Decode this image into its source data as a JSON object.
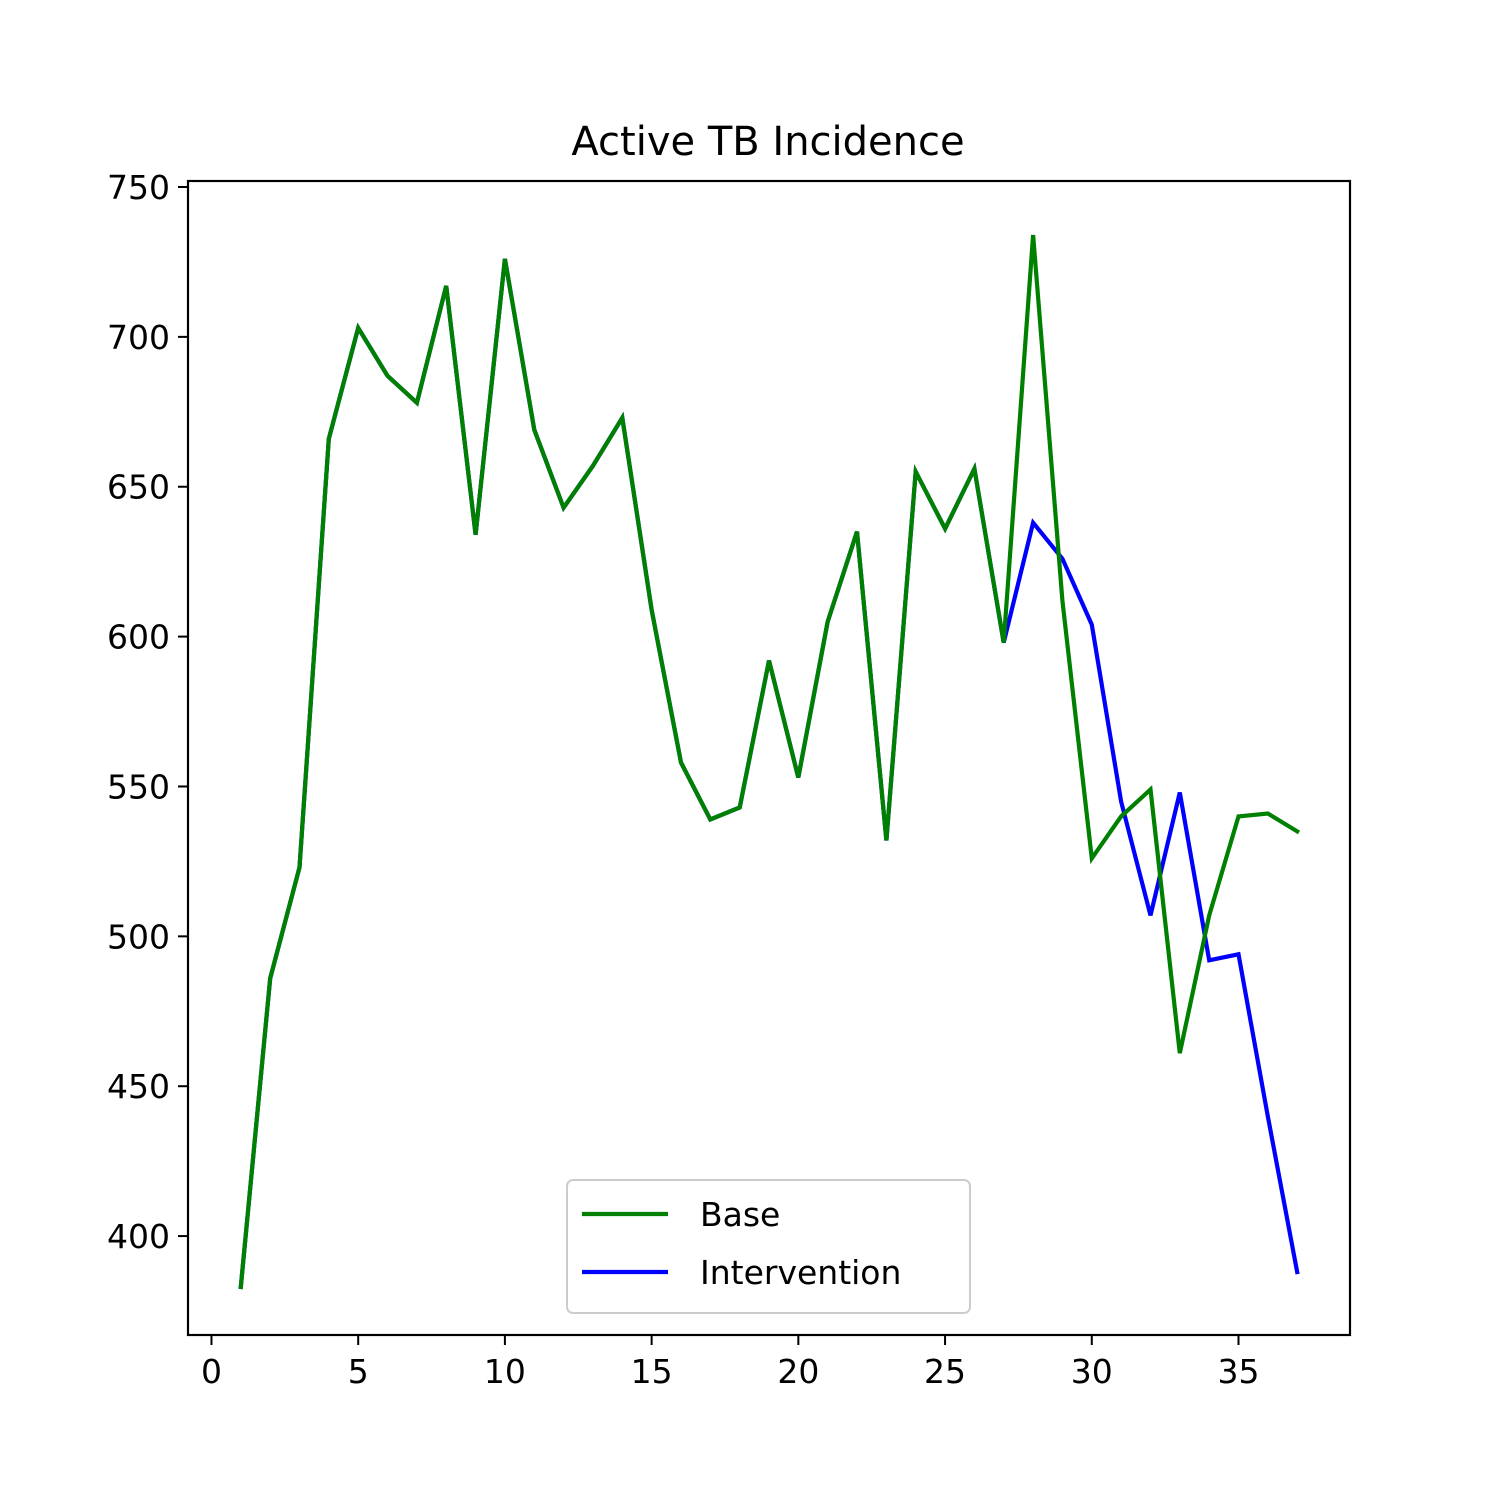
{
  "chart_data": {
    "type": "line",
    "title": "Active TB Incidence",
    "xlabel": "",
    "ylabel": "",
    "xlim": [
      -0.8,
      38.8
    ],
    "ylim": [
      367,
      752
    ],
    "xticks": [
      0,
      5,
      10,
      15,
      20,
      25,
      30,
      35
    ],
    "yticks": [
      400,
      450,
      500,
      550,
      600,
      650,
      700,
      750
    ],
    "grid": false,
    "legend_position": "lower-center",
    "series": [
      {
        "name": "Intervention",
        "color": "#0000ff",
        "x": [
          1,
          2,
          3,
          4,
          5,
          6,
          7,
          8,
          9,
          10,
          11,
          12,
          13,
          14,
          15,
          16,
          17,
          18,
          19,
          20,
          21,
          22,
          23,
          24,
          25,
          26,
          27,
          28,
          29,
          30,
          31,
          32,
          33,
          34,
          35,
          36,
          37
        ],
        "y": [
          383,
          486,
          523,
          666,
          703,
          687,
          678,
          717,
          634,
          726,
          669,
          643,
          657,
          673,
          609,
          558,
          539,
          543,
          592,
          553,
          605,
          635,
          532,
          655,
          636,
          656,
          598,
          638,
          626,
          604,
          545,
          507,
          548,
          492,
          494,
          440,
          388
        ]
      },
      {
        "name": "Base",
        "color": "#008000",
        "x": [
          1,
          2,
          3,
          4,
          5,
          6,
          7,
          8,
          9,
          10,
          11,
          12,
          13,
          14,
          15,
          16,
          17,
          18,
          19,
          20,
          21,
          22,
          23,
          24,
          25,
          26,
          27,
          28,
          29,
          30,
          31,
          32,
          33,
          34,
          35,
          36,
          37
        ],
        "y": [
          383,
          486,
          523,
          666,
          703,
          687,
          678,
          717,
          634,
          726,
          669,
          643,
          657,
          673,
          609,
          558,
          539,
          543,
          592,
          553,
          605,
          635,
          532,
          655,
          636,
          656,
          598,
          734,
          612,
          526,
          540,
          549,
          461,
          507,
          540,
          541,
          535
        ]
      }
    ],
    "legend_order": [
      "Base",
      "Intervention"
    ]
  }
}
